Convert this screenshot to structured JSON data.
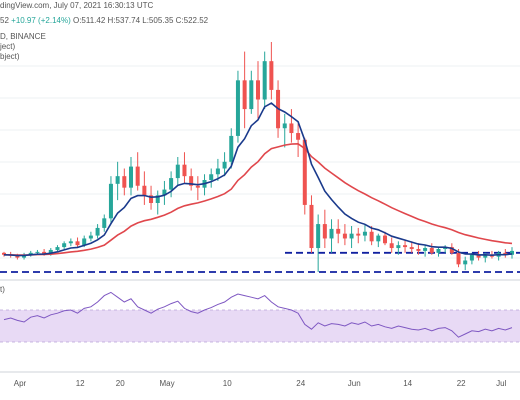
{
  "header": {
    "source_fragment": "dingView.com, July 07, 2021 16:30:13 UTC",
    "symbol_fragment": "D, BINANCE",
    "ohlc_fragment": "52",
    "change": "+10.97 (+2.14%)",
    "open": "O:511.42",
    "high": "H:537.74",
    "low": "L:505.35",
    "close": "C:522.52",
    "overlay1": "ject)",
    "overlay2": "bject)",
    "indicator_label": "t)"
  },
  "chart_data": {
    "type": "candlestick",
    "x_ticks": [
      "Apr",
      "12",
      "20",
      "May",
      "10",
      "24",
      "Jun",
      "14",
      "22",
      "Jul"
    ],
    "candles": [
      [
        440,
        441,
        436,
        438
      ],
      [
        438,
        441,
        435,
        437
      ],
      [
        437,
        439,
        433,
        435
      ],
      [
        435,
        440,
        433,
        438
      ],
      [
        438,
        442,
        436,
        440
      ],
      [
        440,
        443,
        438,
        441
      ],
      [
        441,
        444,
        437,
        439
      ],
      [
        439,
        445,
        437,
        443
      ],
      [
        443,
        448,
        441,
        446
      ],
      [
        446,
        452,
        444,
        450
      ],
      [
        450,
        455,
        447,
        452
      ],
      [
        452,
        456,
        446,
        448
      ],
      [
        448,
        458,
        446,
        455
      ],
      [
        455,
        462,
        452,
        458
      ],
      [
        458,
        470,
        455,
        466
      ],
      [
        466,
        480,
        462,
        476
      ],
      [
        476,
        520,
        470,
        512
      ],
      [
        512,
        535,
        495,
        520
      ],
      [
        520,
        528,
        500,
        508
      ],
      [
        508,
        540,
        500,
        530
      ],
      [
        530,
        545,
        505,
        510
      ],
      [
        510,
        525,
        490,
        500
      ],
      [
        500,
        510,
        485,
        492
      ],
      [
        492,
        505,
        480,
        500
      ],
      [
        500,
        515,
        490,
        506
      ],
      [
        506,
        525,
        498,
        518
      ],
      [
        518,
        540,
        510,
        532
      ],
      [
        532,
        545,
        512,
        520
      ],
      [
        520,
        528,
        505,
        510
      ],
      [
        510,
        520,
        495,
        508
      ],
      [
        508,
        522,
        500,
        516
      ],
      [
        516,
        528,
        508,
        522
      ],
      [
        522,
        538,
        515,
        528
      ],
      [
        528,
        545,
        520,
        535
      ],
      [
        535,
        570,
        528,
        562
      ],
      [
        562,
        630,
        555,
        620
      ],
      [
        620,
        650,
        570,
        590
      ],
      [
        590,
        630,
        585,
        620
      ],
      [
        620,
        640,
        580,
        600
      ],
      [
        600,
        650,
        590,
        640
      ],
      [
        640,
        660,
        600,
        610
      ],
      [
        610,
        620,
        560,
        570
      ],
      [
        570,
        585,
        550,
        575
      ],
      [
        575,
        590,
        555,
        565
      ],
      [
        565,
        575,
        540,
        558
      ],
      [
        558,
        560,
        480,
        490
      ],
      [
        490,
        500,
        440,
        445
      ],
      [
        445,
        480,
        420,
        470
      ],
      [
        470,
        485,
        445,
        455
      ],
      [
        455,
        475,
        440,
        465
      ],
      [
        465,
        475,
        450,
        460
      ],
      [
        460,
        470,
        448,
        455
      ],
      [
        455,
        468,
        445,
        460
      ],
      [
        460,
        466,
        450,
        458
      ],
      [
        458,
        470,
        452,
        462
      ],
      [
        462,
        468,
        448,
        452
      ],
      [
        452,
        460,
        446,
        458
      ],
      [
        458,
        462,
        448,
        450
      ],
      [
        450,
        456,
        440,
        445
      ],
      [
        445,
        452,
        438,
        448
      ],
      [
        448,
        454,
        440,
        446
      ],
      [
        446,
        452,
        440,
        444
      ],
      [
        444,
        450,
        438,
        442
      ],
      [
        442,
        448,
        436,
        445
      ],
      [
        445,
        450,
        438,
        440
      ],
      [
        440,
        446,
        436,
        444
      ],
      [
        444,
        448,
        440,
        446
      ],
      [
        446,
        450,
        438,
        440
      ],
      [
        440,
        444,
        425,
        428
      ],
      [
        428,
        436,
        422,
        432
      ],
      [
        432,
        440,
        428,
        438
      ],
      [
        438,
        442,
        432,
        435
      ],
      [
        435,
        440,
        430,
        438
      ],
      [
        438,
        442,
        434,
        436
      ],
      [
        436,
        442,
        432,
        440
      ],
      [
        440,
        444,
        435,
        438
      ],
      [
        438,
        446,
        434,
        442
      ]
    ],
    "price_levels": [
      440,
      420
    ],
    "rsi": [
      58,
      60,
      57,
      55,
      61,
      63,
      60,
      64,
      66,
      69,
      70,
      66,
      72,
      74,
      80,
      88,
      92,
      86,
      80,
      84,
      74,
      70,
      66,
      71,
      74,
      78,
      81,
      72,
      68,
      66,
      70,
      73,
      77,
      80,
      86,
      90,
      88,
      86,
      84,
      88,
      80,
      74,
      72,
      70,
      66,
      52,
      46,
      54,
      50,
      53,
      52,
      50,
      54,
      52,
      55,
      50,
      52,
      49,
      47,
      50,
      48,
      46,
      45,
      47,
      44,
      47,
      48,
      44,
      36,
      40,
      44,
      43,
      46,
      44,
      47,
      45,
      48
    ],
    "rsi_levels": [
      70,
      30
    ],
    "series": [
      {
        "name": "",
        "color": "#1a3a8c"
      },
      {
        "name": "",
        "color": "#e0474c"
      }
    ]
  }
}
